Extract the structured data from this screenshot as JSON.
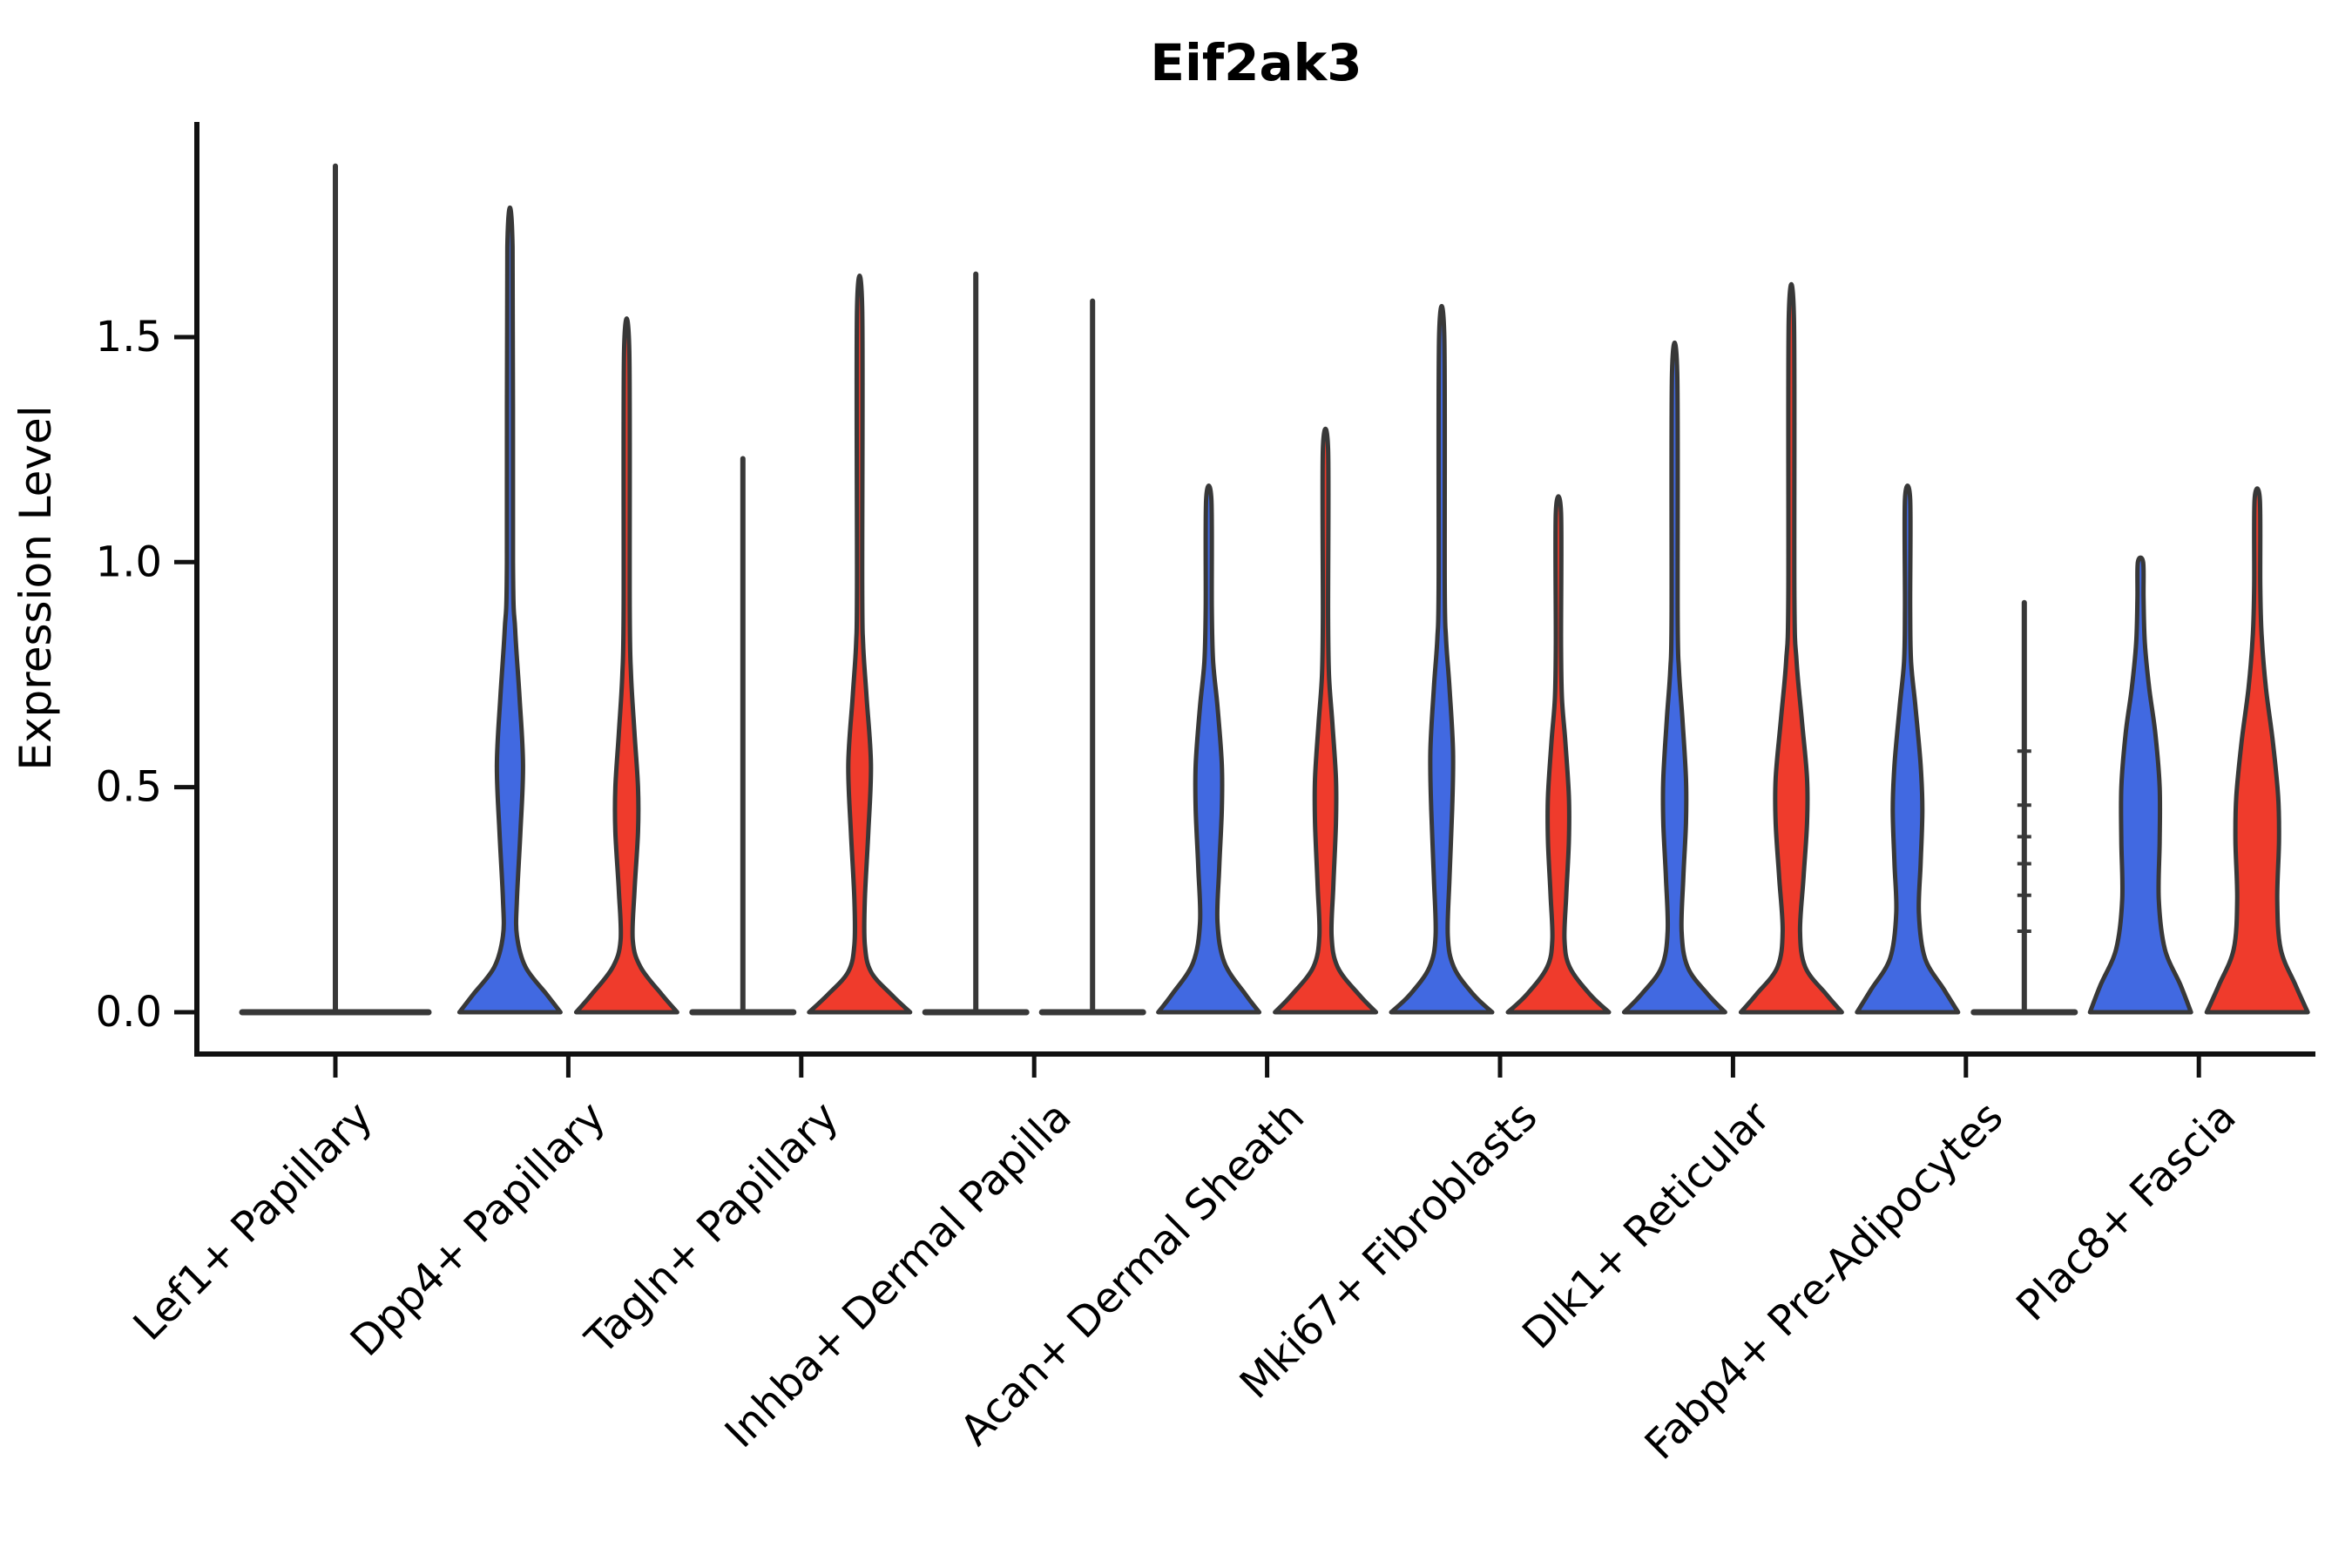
{
  "chart_data": {
    "type": "violin",
    "title": "Eif2ak3",
    "ylabel": "Expression Level",
    "xlabel": "",
    "yticks": [
      0.0,
      0.5,
      1.0,
      1.5
    ],
    "ytick_labels": [
      "0.0",
      "0.5",
      "1.0",
      "1.5"
    ],
    "ylim": [
      -0.09,
      1.98
    ],
    "grid": false,
    "legend": "none",
    "categories": [
      "Lef1+ Papillary",
      "Dpp4+ Papillary",
      "Tagln+ Papillary",
      "Inhba+ Dermal Papilla",
      "Acan+ Dermal Sheath",
      "Mki67+ Fibroblasts",
      "Dlk1+ Reticular",
      "Fabp4+ Pre-Adipocytes",
      "Plac8+ Fascia"
    ],
    "groups": [
      "blue",
      "red"
    ],
    "group_colors": {
      "blue": "#4169E1",
      "red": "#EF3B2C",
      "single": "none"
    },
    "outline_color": "#383838",
    "violins": [
      {
        "ci": 0,
        "category": "Lef1+ Papillary",
        "group": "single",
        "style": "collapsed",
        "max": 1.88,
        "flat_halfspan": 107,
        "note": "density collapsed at 0 with thin spike to max"
      },
      {
        "ci": 1,
        "category": "Dpp4+ Papillary",
        "group": "blue",
        "style": "filled",
        "max": 1.7,
        "bulge_center": 0.55,
        "profile": [
          [
            0,
            58
          ],
          [
            0.04,
            42
          ],
          [
            0.1,
            18
          ],
          [
            0.17,
            8
          ],
          [
            0.25,
            8
          ],
          [
            0.4,
            12
          ],
          [
            0.55,
            15
          ],
          [
            0.7,
            11
          ],
          [
            0.85,
            6
          ],
          [
            1.0,
            3.5
          ],
          [
            1.7,
            3
          ]
        ]
      },
      {
        "ci": 1,
        "category": "Dpp4+ Papillary",
        "group": "red",
        "style": "filled",
        "max": 1.47,
        "bulge_center": 0.47,
        "profile": [
          [
            0,
            58
          ],
          [
            0.04,
            40
          ],
          [
            0.1,
            16
          ],
          [
            0.16,
            7
          ],
          [
            0.27,
            9
          ],
          [
            0.4,
            13
          ],
          [
            0.5,
            13
          ],
          [
            0.62,
            9
          ],
          [
            0.75,
            5
          ],
          [
            0.9,
            3.5
          ],
          [
            1.47,
            3
          ]
        ]
      },
      {
        "ci": 2,
        "category": "Tagln+ Papillary",
        "group": "blue",
        "style": "collapsed",
        "max": 1.23,
        "flat_halfspan": 58
      },
      {
        "ci": 2,
        "category": "Tagln+ Papillary",
        "group": "red",
        "style": "filled",
        "max": 1.56,
        "bulge_center": 0.55,
        "profile": [
          [
            0,
            58
          ],
          [
            0.04,
            36
          ],
          [
            0.09,
            13
          ],
          [
            0.15,
            6
          ],
          [
            0.25,
            6
          ],
          [
            0.4,
            10
          ],
          [
            0.55,
            13
          ],
          [
            0.7,
            8
          ],
          [
            0.82,
            4
          ],
          [
            0.95,
            3
          ],
          [
            1.56,
            3
          ]
        ]
      },
      {
        "ci": 3,
        "category": "Inhba+ Dermal Papilla",
        "group": "blue",
        "style": "collapsed",
        "max": 1.64,
        "flat_halfspan": 58
      },
      {
        "ci": 3,
        "category": "Inhba+ Dermal Papilla",
        "group": "red",
        "style": "collapsed",
        "max": 1.58,
        "flat_halfspan": 58
      },
      {
        "ci": 4,
        "category": "Acan+ Dermal Sheath",
        "group": "blue",
        "style": "filled",
        "max": 1.14,
        "bulge_center": 0.5,
        "profile": [
          [
            0,
            58
          ],
          [
            0.04,
            42
          ],
          [
            0.11,
            18
          ],
          [
            0.2,
            10
          ],
          [
            0.32,
            12
          ],
          [
            0.45,
            15
          ],
          [
            0.55,
            15
          ],
          [
            0.68,
            10
          ],
          [
            0.78,
            5
          ],
          [
            0.9,
            3.5
          ],
          [
            1.14,
            3
          ]
        ]
      },
      {
        "ci": 4,
        "category": "Acan+ Dermal Sheath",
        "group": "red",
        "style": "filled",
        "max": 1.25,
        "bulge_center": 0.47,
        "profile": [
          [
            0,
            58
          ],
          [
            0.04,
            38
          ],
          [
            0.1,
            14
          ],
          [
            0.17,
            7
          ],
          [
            0.28,
            9
          ],
          [
            0.42,
            12
          ],
          [
            0.52,
            12
          ],
          [
            0.64,
            8
          ],
          [
            0.75,
            4
          ],
          [
            0.88,
            3
          ],
          [
            1.25,
            3
          ]
        ]
      },
      {
        "ci": 5,
        "category": "Mki67+ Fibroblasts",
        "group": "blue",
        "style": "filled",
        "max": 1.5,
        "bulge_center": 0.57,
        "profile": [
          [
            0,
            58
          ],
          [
            0.04,
            36
          ],
          [
            0.1,
            14
          ],
          [
            0.17,
            7
          ],
          [
            0.3,
            9
          ],
          [
            0.45,
            12
          ],
          [
            0.58,
            13
          ],
          [
            0.72,
            9
          ],
          [
            0.83,
            5
          ],
          [
            0.95,
            3.5
          ],
          [
            1.5,
            3
          ]
        ]
      },
      {
        "ci": 5,
        "category": "Mki67+ Fibroblasts",
        "group": "red",
        "style": "filled",
        "max": 1.11,
        "bulge_center": 0.47,
        "profile": [
          [
            0,
            58
          ],
          [
            0.04,
            36
          ],
          [
            0.1,
            13
          ],
          [
            0.16,
            7
          ],
          [
            0.26,
            9
          ],
          [
            0.38,
            12
          ],
          [
            0.48,
            12
          ],
          [
            0.6,
            8
          ],
          [
            0.7,
            4
          ],
          [
            0.82,
            3
          ],
          [
            1.11,
            3
          ]
        ]
      },
      {
        "ci": 6,
        "category": "Dlk1+ Reticular",
        "group": "blue",
        "style": "filled",
        "max": 1.42,
        "bulge_center": 0.5,
        "profile": [
          [
            0,
            58
          ],
          [
            0.04,
            38
          ],
          [
            0.1,
            15
          ],
          [
            0.18,
            8
          ],
          [
            0.3,
            10
          ],
          [
            0.42,
            13
          ],
          [
            0.52,
            13
          ],
          [
            0.65,
            9
          ],
          [
            0.76,
            5
          ],
          [
            0.88,
            3.5
          ],
          [
            1.42,
            3
          ]
        ]
      },
      {
        "ci": 6,
        "category": "Dlk1+ Reticular",
        "group": "red",
        "style": "filled",
        "max": 1.54,
        "bulge_center": 0.47,
        "profile": [
          [
            0,
            58
          ],
          [
            0.04,
            40
          ],
          [
            0.1,
            16
          ],
          [
            0.18,
            10
          ],
          [
            0.3,
            14
          ],
          [
            0.42,
            18
          ],
          [
            0.52,
            18
          ],
          [
            0.65,
            12
          ],
          [
            0.78,
            6
          ],
          [
            0.92,
            3.5
          ],
          [
            1.54,
            3
          ]
        ]
      },
      {
        "ci": 7,
        "category": "Fabp4+ Pre-Adipocytes",
        "group": "blue",
        "style": "filled",
        "max": 1.14,
        "bulge_center": 0.47,
        "profile": [
          [
            0,
            58
          ],
          [
            0.05,
            42
          ],
          [
            0.12,
            20
          ],
          [
            0.22,
            13
          ],
          [
            0.33,
            15
          ],
          [
            0.45,
            17
          ],
          [
            0.55,
            15
          ],
          [
            0.68,
            9
          ],
          [
            0.78,
            4
          ],
          [
            0.9,
            3
          ],
          [
            1.14,
            3
          ]
        ]
      },
      {
        "ci": 7,
        "category": "Fabp4+ Pre-Adipocytes",
        "group": "red",
        "style": "collapsed",
        "max": 0.91,
        "flat_halfspan": 58,
        "notches": [
          0.18,
          0.26,
          0.33,
          0.39,
          0.46,
          0.58
        ]
      },
      {
        "ci": 8,
        "category": "Plac8+ Fascia",
        "group": "blue",
        "style": "filled",
        "max": 1.0,
        "bulge_center": 0.45,
        "profile": [
          [
            0,
            58
          ],
          [
            0.06,
            46
          ],
          [
            0.14,
            28
          ],
          [
            0.25,
            21
          ],
          [
            0.38,
            22
          ],
          [
            0.5,
            22
          ],
          [
            0.62,
            17
          ],
          [
            0.72,
            10
          ],
          [
            0.82,
            5
          ],
          [
            0.92,
            3.5
          ],
          [
            1.0,
            3
          ]
        ]
      },
      {
        "ci": 8,
        "category": "Plac8+ Fascia",
        "group": "red",
        "style": "filled",
        "max": 1.14,
        "bulge_center": 0.45,
        "profile": [
          [
            0,
            58
          ],
          [
            0.06,
            44
          ],
          [
            0.14,
            27
          ],
          [
            0.25,
            23
          ],
          [
            0.38,
            25
          ],
          [
            0.48,
            24
          ],
          [
            0.6,
            18
          ],
          [
            0.72,
            10
          ],
          [
            0.84,
            5
          ],
          [
            0.95,
            3.5
          ],
          [
            1.14,
            3
          ]
        ]
      }
    ]
  }
}
